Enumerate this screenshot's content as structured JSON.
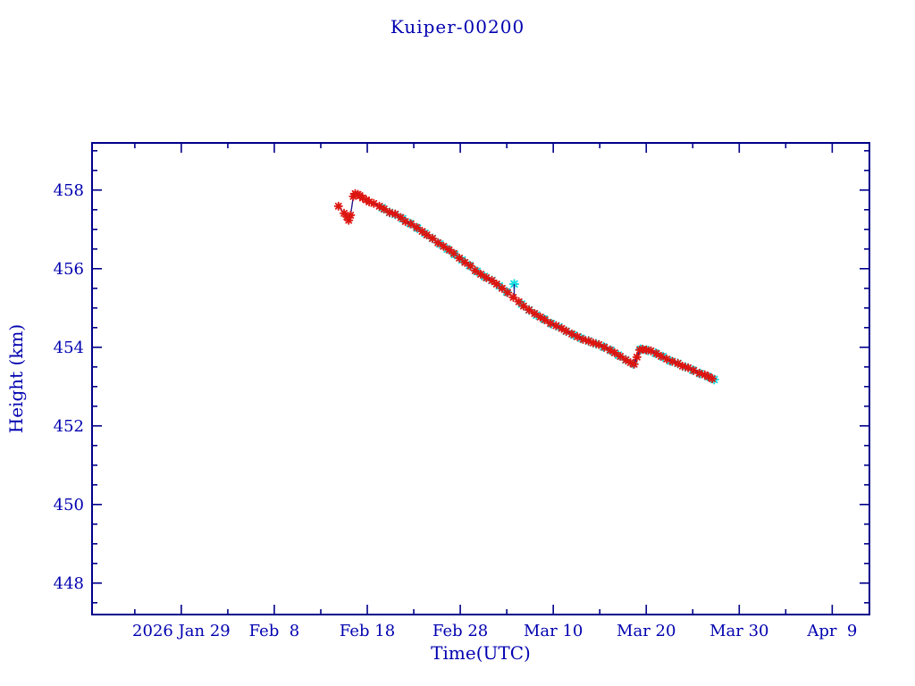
{
  "chart_data": {
    "type": "line",
    "title": "Kuiper-00200",
    "xlabel": "Time(UTC)",
    "ylabel": "Height (km)",
    "grid": false,
    "legend": null,
    "x_unit": "days since first x tick (2026 Jan 29 = 0)",
    "xlim": [
      -9.6,
      74.0
    ],
    "ylim": [
      447.2,
      459.2
    ],
    "x_major_ticks": [
      {
        "t": 0,
        "label": "2026 Jan 29"
      },
      {
        "t": 10,
        "label": "Feb  8"
      },
      {
        "t": 20,
        "label": "Feb 18"
      },
      {
        "t": 30,
        "label": "Feb 28"
      },
      {
        "t": 40,
        "label": "Mar 10"
      },
      {
        "t": 50,
        "label": "Mar 20"
      },
      {
        "t": 60,
        "label": "Mar 30"
      },
      {
        "t": 70,
        "label": "Apr  9"
      }
    ],
    "x_minor_ticks": [
      -5,
      5,
      15,
      25,
      35,
      45,
      55,
      65
    ],
    "y_major_ticks": [
      {
        "v": 448,
        "label": "448"
      },
      {
        "v": 450,
        "label": "450"
      },
      {
        "v": 452,
        "label": "452"
      },
      {
        "v": 454,
        "label": "454"
      },
      {
        "v": 456,
        "label": "456"
      },
      {
        "v": 458,
        "label": "458"
      }
    ],
    "y_minor_ticks": [
      447.5,
      448.5,
      449,
      449.5,
      450.5,
      451,
      451.5,
      452.5,
      453,
      453.5,
      454.5,
      455,
      455.5,
      456.5,
      457,
      457.5,
      458.5,
      459
    ],
    "colors": {
      "frame": "#00008b",
      "text": "#0000b0",
      "series_red": "#dd1510",
      "series_cyan": "#16dede",
      "line": "#221a8e",
      "background": "#ffffff"
    },
    "series": [
      {
        "name": "series-cyan",
        "marker": "asterisk",
        "color_key": "series_cyan",
        "connect": false,
        "points": [
          [
            21.6,
            457.55
          ],
          [
            22.4,
            457.43
          ],
          [
            23.0,
            457.38
          ],
          [
            23.8,
            457.27
          ],
          [
            24.6,
            457.15
          ],
          [
            25.4,
            457.03
          ],
          [
            26.2,
            456.9
          ],
          [
            27.0,
            456.77
          ],
          [
            27.8,
            456.63
          ],
          [
            28.6,
            456.5
          ],
          [
            29.4,
            456.36
          ],
          [
            30.2,
            456.22
          ],
          [
            31.0,
            456.08
          ],
          [
            31.8,
            455.93
          ],
          [
            32.6,
            455.8
          ],
          [
            33.4,
            455.7
          ],
          [
            34.2,
            455.56
          ],
          [
            35.0,
            455.41
          ],
          [
            36.6,
            455.1
          ],
          [
            37.4,
            454.95
          ],
          [
            38.2,
            454.82
          ],
          [
            39.0,
            454.72
          ],
          [
            39.8,
            454.6
          ],
          [
            40.6,
            454.52
          ],
          [
            41.4,
            454.41
          ],
          [
            42.2,
            454.31
          ],
          [
            43.0,
            454.23
          ],
          [
            43.8,
            454.16
          ],
          [
            44.6,
            454.09
          ],
          [
            45.4,
            454.01
          ],
          [
            46.2,
            453.92
          ],
          [
            47.0,
            453.8
          ],
          [
            47.8,
            453.68
          ],
          [
            48.6,
            453.58
          ],
          [
            49.4,
            453.95
          ],
          [
            50.2,
            453.92
          ],
          [
            51.0,
            453.85
          ],
          [
            51.8,
            453.76
          ],
          [
            52.6,
            453.65
          ],
          [
            53.4,
            453.59
          ],
          [
            54.2,
            453.5
          ],
          [
            55.0,
            453.42
          ],
          [
            55.8,
            453.33
          ],
          [
            56.6,
            453.26
          ],
          [
            57.3,
            453.18
          ]
        ]
      },
      {
        "name": "series-red",
        "marker": "asterisk",
        "color_key": "series_red",
        "connect": true,
        "points": [
          [
            16.9,
            457.59
          ],
          [
            17.5,
            457.41
          ],
          [
            17.8,
            457.32
          ],
          [
            18.0,
            457.23
          ],
          [
            18.2,
            457.36
          ],
          [
            18.5,
            457.84
          ],
          [
            18.7,
            457.91
          ],
          [
            19.0,
            457.89
          ],
          [
            19.2,
            457.86
          ],
          [
            19.5,
            457.8
          ],
          [
            19.9,
            457.75
          ],
          [
            20.2,
            457.7
          ],
          [
            20.7,
            457.66
          ],
          [
            21.3,
            457.59
          ],
          [
            21.8,
            457.52
          ],
          [
            22.4,
            457.43
          ],
          [
            23.0,
            457.39
          ],
          [
            23.6,
            457.3
          ],
          [
            24.1,
            457.2
          ],
          [
            24.7,
            457.14
          ],
          [
            25.3,
            457.05
          ],
          [
            25.9,
            456.95
          ],
          [
            26.4,
            456.86
          ],
          [
            27.0,
            456.77
          ],
          [
            27.6,
            456.66
          ],
          [
            28.2,
            456.57
          ],
          [
            28.8,
            456.48
          ],
          [
            29.3,
            456.39
          ],
          [
            29.9,
            456.27
          ],
          [
            30.5,
            456.16
          ],
          [
            31.1,
            456.07
          ],
          [
            31.6,
            455.95
          ],
          [
            32.2,
            455.86
          ],
          [
            32.8,
            455.77
          ],
          [
            33.4,
            455.7
          ],
          [
            33.9,
            455.61
          ],
          [
            34.5,
            455.5
          ],
          [
            35.1,
            455.39
          ],
          [
            35.7,
            455.27
          ],
          [
            36.3,
            455.16
          ],
          [
            36.8,
            455.05
          ],
          [
            37.4,
            454.95
          ],
          [
            38.0,
            454.86
          ],
          [
            38.6,
            454.77
          ],
          [
            39.1,
            454.7
          ],
          [
            39.7,
            454.61
          ],
          [
            40.3,
            454.55
          ],
          [
            40.9,
            454.48
          ],
          [
            41.4,
            454.41
          ],
          [
            42.0,
            454.34
          ],
          [
            42.6,
            454.27
          ],
          [
            43.2,
            454.2
          ],
          [
            43.8,
            454.16
          ],
          [
            44.3,
            454.11
          ],
          [
            44.9,
            454.07
          ],
          [
            45.5,
            454.0
          ],
          [
            46.1,
            453.93
          ],
          [
            46.6,
            453.86
          ],
          [
            47.2,
            453.77
          ],
          [
            47.8,
            453.68
          ],
          [
            48.3,
            453.61
          ],
          [
            48.7,
            453.57
          ],
          [
            49.0,
            453.75
          ],
          [
            49.3,
            453.93
          ],
          [
            49.6,
            453.95
          ],
          [
            50.0,
            453.93
          ],
          [
            50.5,
            453.91
          ],
          [
            51.1,
            453.84
          ],
          [
            51.6,
            453.77
          ],
          [
            52.2,
            453.7
          ],
          [
            52.8,
            453.64
          ],
          [
            53.4,
            453.59
          ],
          [
            53.9,
            453.52
          ],
          [
            54.5,
            453.48
          ],
          [
            55.1,
            453.41
          ],
          [
            55.7,
            453.34
          ],
          [
            56.3,
            453.3
          ],
          [
            56.7,
            453.25
          ],
          [
            57.1,
            453.2
          ]
        ]
      }
    ],
    "outliers": [
      {
        "series": "series-cyan",
        "t": 35.8,
        "h": 455.61,
        "spike_base": 455.24
      }
    ]
  }
}
